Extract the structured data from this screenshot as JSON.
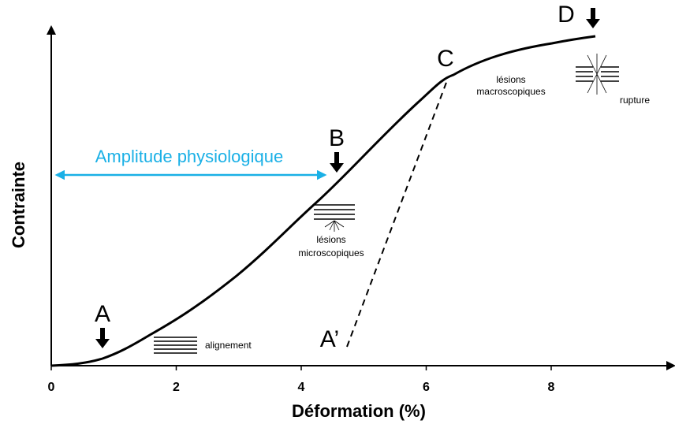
{
  "title": null,
  "x_axis": {
    "label": "Déformation (%)",
    "xlim": [
      0,
      10
    ],
    "ticks": [
      0,
      2,
      4,
      6,
      8
    ]
  },
  "y_axis": {
    "label": "Contrainte"
  },
  "points": {
    "A": "A",
    "B": "B",
    "C": "C",
    "D": "D",
    "A_prime": "A’"
  },
  "range": {
    "label": "Amplitude physiologique"
  },
  "annotations": {
    "alignment": "alignement",
    "micro": [
      "lésions",
      "microscopiques"
    ],
    "macro": [
      "lésions",
      "macroscopiques"
    ],
    "rupture": "rupture"
  }
}
